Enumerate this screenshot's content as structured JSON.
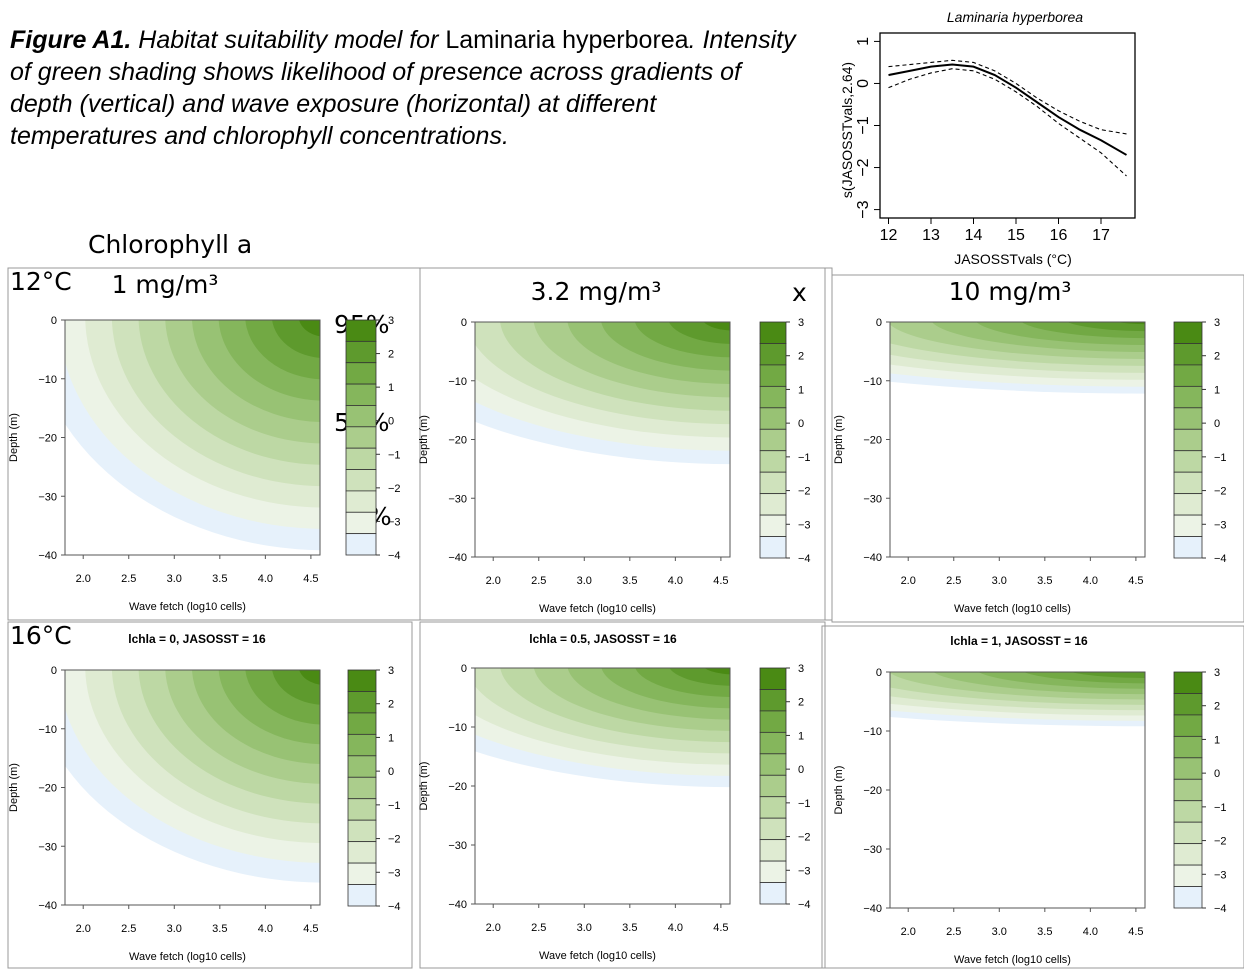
{
  "caption": {
    "lead": "Figure A1.",
    "part1": " Habitat suitability model for ",
    "species1": "Laminaria",
    "species2": "hyperborea",
    "part2": ". Intensity of green shading shows likelihood of presence across gradients of depth (vertical) and wave exposure (horizontal) at different temperatures and chlorophyll concentrations."
  },
  "annotations": {
    "chlorophyll_heading": "Chlorophyll a",
    "temp_row1": "12°C",
    "temp_row2": "16°C",
    "x_mark": "x",
    "legend_pct_high": "95%",
    "legend_pct_mid": "50%",
    "legend_pct_low": "5%"
  },
  "colors": {
    "green_dark": "#4a8a14",
    "green_mid": "#8db871",
    "green_light": "#d9e8cf",
    "blue_light": "#e6f1fb",
    "frame": "#999999"
  },
  "chart_data": [
    {
      "type": "line",
      "title": "Laminaria hyperborea",
      "xlabel": "JASOSSTvals (°C)",
      "ylabel": "s(JASOSSTvals,2.64)",
      "xlim": [
        11.8,
        17.8
      ],
      "ylim": [
        -3.2,
        1.2
      ],
      "xticks": [
        "12",
        "13",
        "14",
        "15",
        "16",
        "17"
      ],
      "yticks": [
        "1",
        "0",
        "−1",
        "−2",
        "−3"
      ],
      "series": [
        {
          "role": "fit",
          "x": [
            12.0,
            12.5,
            13.0,
            13.5,
            14.0,
            14.5,
            15.0,
            15.5,
            16.0,
            16.5,
            17.0,
            17.6
          ],
          "y": [
            0.2,
            0.3,
            0.4,
            0.45,
            0.4,
            0.2,
            -0.1,
            -0.45,
            -0.8,
            -1.1,
            -1.35,
            -1.7
          ]
        },
        {
          "role": "upper",
          "x": [
            12.0,
            12.5,
            13.0,
            13.5,
            14.0,
            14.5,
            15.0,
            15.5,
            16.0,
            16.5,
            17.0,
            17.6
          ],
          "y": [
            0.4,
            0.45,
            0.5,
            0.55,
            0.5,
            0.3,
            0.0,
            -0.35,
            -0.65,
            -0.9,
            -1.1,
            -1.2
          ]
        },
        {
          "role": "lower",
          "x": [
            12.0,
            12.5,
            13.0,
            13.5,
            14.0,
            14.5,
            15.0,
            15.5,
            16.0,
            16.5,
            17.0,
            17.6
          ],
          "y": [
            -0.1,
            0.1,
            0.25,
            0.35,
            0.3,
            0.1,
            -0.2,
            -0.55,
            -0.95,
            -1.3,
            -1.65,
            -2.2
          ]
        }
      ]
    },
    {
      "type": "heatmap",
      "panels": [
        {
          "label": "1 mg/m³",
          "subtitle": "",
          "temp": 12,
          "lchla": 0,
          "depth_extent": 40
        },
        {
          "label": "3.2 mg/m³",
          "subtitle": "",
          "temp": 12,
          "lchla": 0.5,
          "depth_extent": 25
        },
        {
          "label": "10 mg/m³",
          "subtitle": "",
          "temp": 12,
          "lchla": 1,
          "depth_extent": 13
        },
        {
          "label": "",
          "subtitle": "lchla = 0, JASOSST = 16",
          "temp": 16,
          "lchla": 0,
          "depth_extent": 37
        },
        {
          "label": "",
          "subtitle": "lchla = 0.5, JASOSST = 16",
          "temp": 16,
          "lchla": 0.5,
          "depth_extent": 21
        },
        {
          "label": "",
          "subtitle": "lchla = 1, JASOSST = 16",
          "temp": 16,
          "lchla": 1,
          "depth_extent": 10
        }
      ],
      "xlabel": "Wave fetch (log10 cells)",
      "ylabel": "Depth (m)",
      "xlim": [
        1.8,
        4.6
      ],
      "ylim": [
        -40,
        0
      ],
      "xticks": [
        "2.0",
        "2.5",
        "3.0",
        "3.5",
        "4.0",
        "4.5"
      ],
      "yticks": [
        "0",
        "−10",
        "−20",
        "−30",
        "−40"
      ],
      "legend_ticks": [
        "3",
        "2",
        "1",
        "0",
        "−1",
        "−2",
        "−3",
        "−4"
      ],
      "legend_colors": [
        "#4a8a14",
        "#5e9a2d",
        "#72a944",
        "#85b65c",
        "#98c274",
        "#abcd8c",
        "#bdd8a4",
        "#cfe2bc",
        "#dfebd2",
        "#ecf3e6",
        "#e6f1fb"
      ]
    }
  ]
}
